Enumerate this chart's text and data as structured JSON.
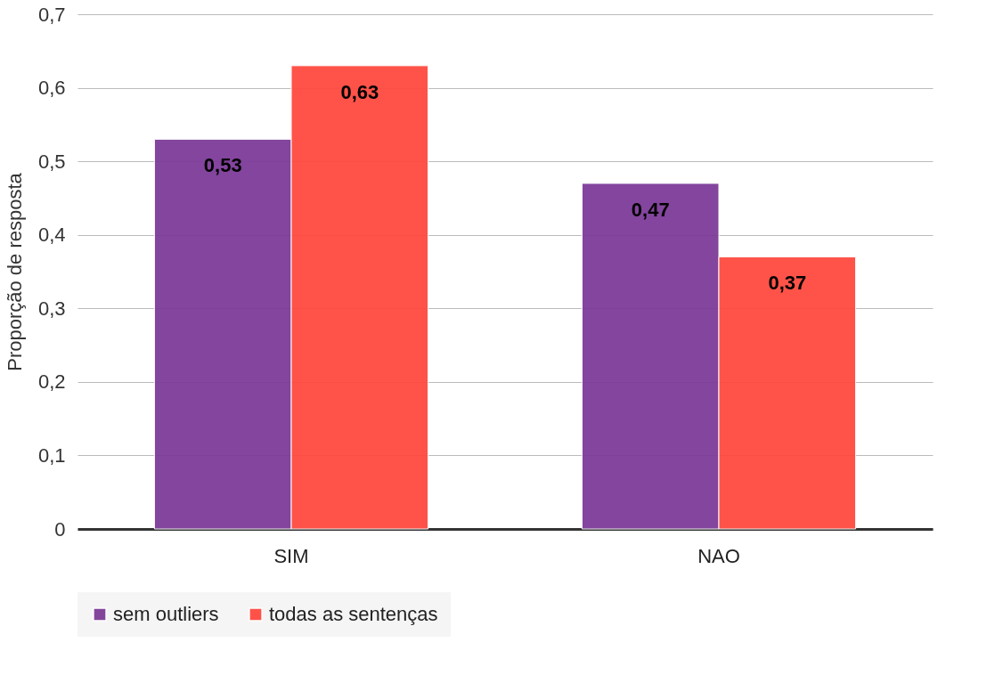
{
  "chart_data": {
    "type": "bar",
    "ylabel": "Proporção de resposta",
    "categories": [
      "SIM",
      "NAO"
    ],
    "series": [
      {
        "name": "sem outliers",
        "color": "#7d3c98",
        "values": [
          0.53,
          0.47
        ],
        "value_labels": [
          "0,53",
          "0,47"
        ]
      },
      {
        "name": "todas as sentenças",
        "color": "#ff4a40",
        "values": [
          0.63,
          0.37
        ],
        "value_labels": [
          "0,63",
          "0,37"
        ]
      }
    ],
    "ylim": [
      0,
      0.7
    ],
    "yticks": [
      0,
      {
        "value": 0.1,
        "label": "0,1"
      },
      {
        "value": 0.2,
        "label": "0,2"
      },
      {
        "value": 0.3,
        "label": "0,3"
      },
      {
        "value": 0.4,
        "label": "0,4"
      },
      {
        "value": 0.5,
        "label": "0,5"
      },
      {
        "value": 0.6,
        "label": "0,6"
      },
      {
        "value": 0.7,
        "label": "0,7"
      }
    ],
    "grid": "y",
    "legend": "bottom"
  }
}
